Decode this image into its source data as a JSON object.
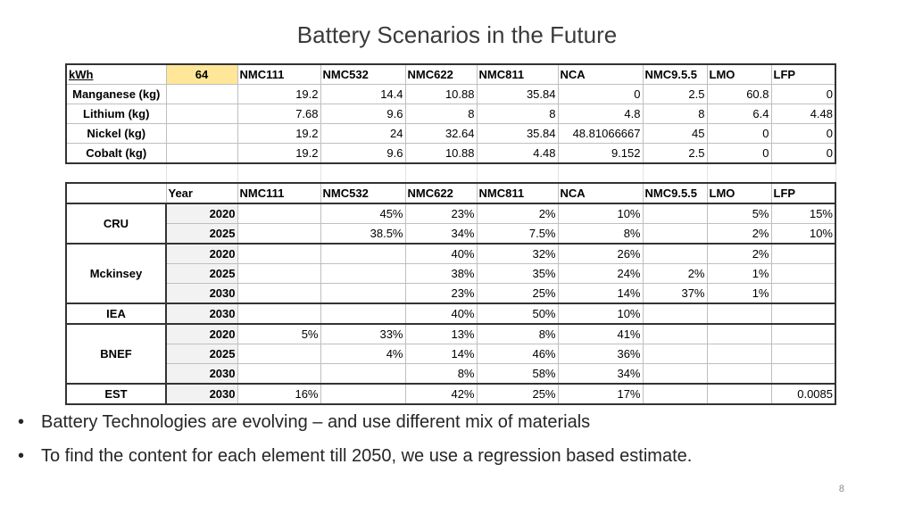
{
  "title": "Battery Scenarios in the Future",
  "table1": {
    "corner_label": "kWh",
    "kwh_value": "64",
    "headers": [
      "NMC111",
      "NMC532",
      "NMC622",
      "NMC811",
      "NCA",
      "NMC9.5.5",
      "LMO",
      "LFP"
    ],
    "rows": [
      {
        "label": "Manganese (kg)",
        "values": [
          "19.2",
          "14.4",
          "10.88",
          "35.84",
          "0",
          "2.5",
          "60.8",
          "0"
        ]
      },
      {
        "label": "Lithium (kg)",
        "values": [
          "7.68",
          "9.6",
          "8",
          "8",
          "4.8",
          "8",
          "6.4",
          "4.48"
        ]
      },
      {
        "label": "Nickel (kg)",
        "values": [
          "19.2",
          "24",
          "32.64",
          "35.84",
          "48.81066667",
          "45",
          "0",
          "0"
        ]
      },
      {
        "label": "Cobalt (kg)",
        "values": [
          "19.2",
          "9.6",
          "10.88",
          "4.48",
          "9.152",
          "2.5",
          "0",
          "0"
        ]
      }
    ]
  },
  "table2": {
    "year_header": "Year",
    "headers": [
      "NMC111",
      "NMC532",
      "NMC622",
      "NMC811",
      "NCA",
      "NMC9.5.5",
      "LMO",
      "LFP"
    ],
    "groups": [
      {
        "name": "CRU",
        "rows": [
          {
            "year": "2020",
            "values": [
              "",
              "45%",
              "23%",
              "2%",
              "10%",
              "",
              "5%",
              "15%"
            ]
          },
          {
            "year": "2025",
            "values": [
              "",
              "38.5%",
              "34%",
              "7.5%",
              "8%",
              "",
              "2%",
              "10%"
            ]
          }
        ]
      },
      {
        "name": "Mckinsey",
        "rows": [
          {
            "year": "2020",
            "values": [
              "",
              "",
              "40%",
              "32%",
              "26%",
              "",
              "2%",
              ""
            ]
          },
          {
            "year": "2025",
            "values": [
              "",
              "",
              "38%",
              "35%",
              "24%",
              "2%",
              "1%",
              ""
            ]
          },
          {
            "year": "2030",
            "values": [
              "",
              "",
              "23%",
              "25%",
              "14%",
              "37%",
              "1%",
              ""
            ]
          }
        ]
      },
      {
        "name": "IEA",
        "rows": [
          {
            "year": "2030",
            "values": [
              "",
              "",
              "40%",
              "50%",
              "10%",
              "",
              "",
              ""
            ]
          }
        ]
      },
      {
        "name": "BNEF",
        "rows": [
          {
            "year": "2020",
            "values": [
              "5%",
              "33%",
              "13%",
              "8%",
              "41%",
              "",
              "",
              ""
            ]
          },
          {
            "year": "2025",
            "values": [
              "",
              "4%",
              "14%",
              "46%",
              "36%",
              "",
              "",
              ""
            ]
          },
          {
            "year": "2030",
            "values": [
              "",
              "",
              "8%",
              "58%",
              "34%",
              "",
              "",
              ""
            ]
          }
        ]
      },
      {
        "name": "EST",
        "rows": [
          {
            "year": "2030",
            "values": [
              "16%",
              "",
              "42%",
              "25%",
              "17%",
              "",
              "",
              "0.0085"
            ]
          }
        ]
      }
    ]
  },
  "bullets": [
    "Battery Technologies are evolving – and use different mix of materials",
    "To find the content for each element till 2050, we use a regression based estimate."
  ],
  "bullet_symbol": "•",
  "page_number": "8"
}
